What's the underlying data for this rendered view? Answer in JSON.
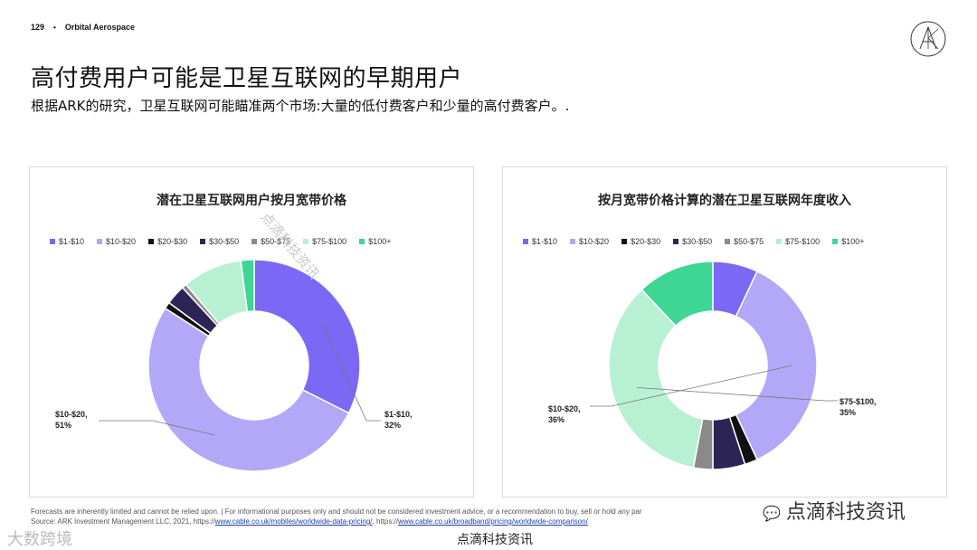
{
  "header": {
    "page_number": "129",
    "bullet": "•",
    "company": "Orbital Aerospace"
  },
  "title": "高付费用户可能是卫星互联网的早期用户",
  "subtitle": "根据ARK的研究，卫星互联网可能瞄准两个市场:大量的低付费客户和少量的高付费客户。.",
  "footnote": {
    "line1": "Forecasts are inherently limited and cannot be relied upon. | For informational purposes only and should not be considered investment advice, or a recommendation to buy, sell or hold any par",
    "line2_prefix": "Source: ARK Investment Management LLC, 2021, https://",
    "link1": "www.cable.co.uk/mobiles/worldwide-data-pricing/",
    "mid": ", https://",
    "link2": "www.cable.co.uk/broadband/pricing/worldwide-comparison/"
  },
  "watermarks": {
    "wechat": "点滴科技资讯",
    "bottom_center": "点滴科技资讯",
    "bottom_left": "大数跨境",
    "diagonal": "点滴科技资讯"
  },
  "colors": {
    "$1-$10": "#7b68f5",
    "$10-$20": "#b3a8f7",
    "$20-$30": "#111111",
    "$30-$50": "#2d2456",
    "$50-$75": "#8a8a8a",
    "$75-$100": "#b8f0d4",
    "$100+": "#3dd693"
  },
  "chart_data": [
    {
      "type": "pie",
      "title": "潜在卫星互联网用户按月宽带价格",
      "categories": [
        "$1-$10",
        "$10-$20",
        "$20-$30",
        "$30-$50",
        "$50-$75",
        "$75-$100",
        "$100+"
      ],
      "values": [
        32,
        51,
        1,
        3,
        0.7,
        9,
        2
      ],
      "annotations": [
        {
          "category": "$1-$10",
          "label": "$1-$10,",
          "value_label": "32%"
        },
        {
          "category": "$10-$20",
          "label": "$10-$20,",
          "value_label": "51%"
        }
      ],
      "legend": "top"
    },
    {
      "type": "pie",
      "title": "按月宽带价格计算的潜在卫星互联网年度收入",
      "categories": [
        "$1-$10",
        "$10-$20",
        "$20-$30",
        "$30-$50",
        "$50-$75",
        "$75-$100",
        "$100+"
      ],
      "values": [
        7,
        36,
        2,
        5,
        3,
        35,
        12
      ],
      "annotations": [
        {
          "category": "$10-$20",
          "label": "$10-$20,",
          "value_label": "36%"
        },
        {
          "category": "$75-$100",
          "label": "$75-$100,",
          "value_label": "35%"
        }
      ],
      "legend": "top"
    }
  ]
}
